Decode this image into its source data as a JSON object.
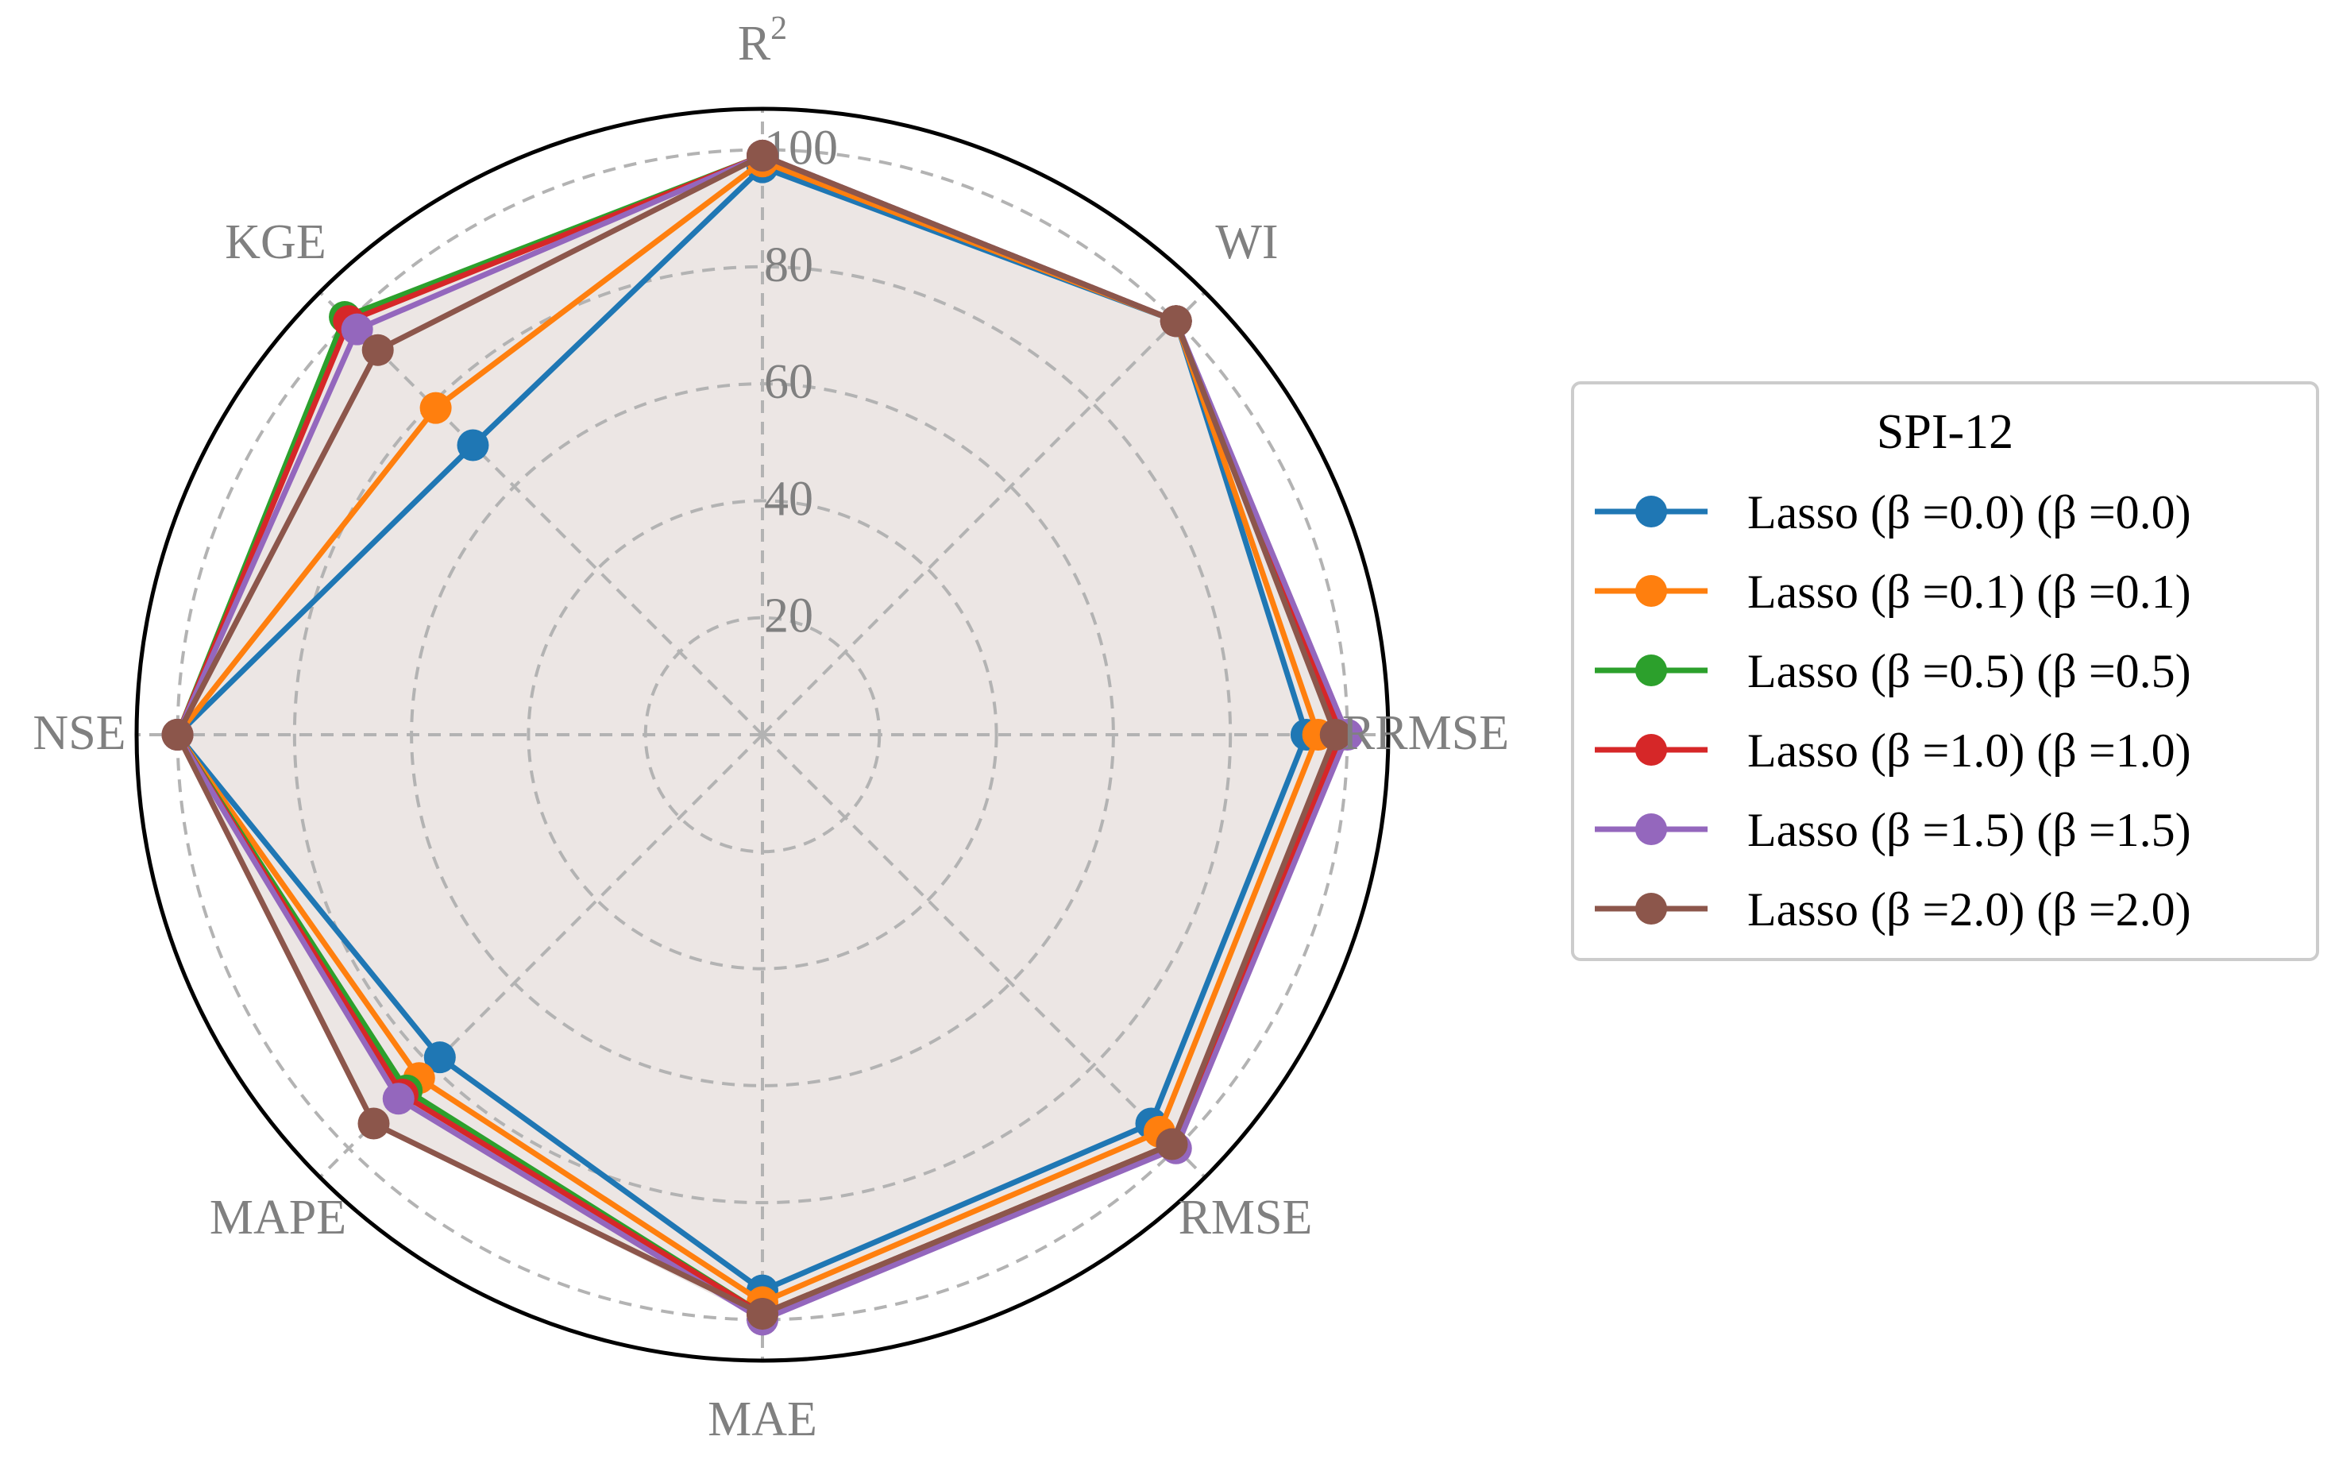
{
  "chart_data": {
    "type": "radar",
    "axes": [
      "R²",
      "WI",
      "RRMSE",
      "RMSE",
      "MAE",
      "MAPE",
      "NSE",
      "KGE"
    ],
    "axis_labels": [
      "R",
      "WI",
      "RRMSE",
      "RMSE",
      "MAE",
      "MAPE",
      "NSE",
      "KGE"
    ],
    "axis_label_superscripts": [
      "2",
      "",
      "",
      "",
      "",
      "",
      "",
      ""
    ],
    "r_ticks": [
      "20",
      "40",
      "60",
      "80",
      "100"
    ],
    "r_tick_values": [
      20,
      40,
      60,
      80,
      100
    ],
    "rlim": [
      0,
      107
    ],
    "grid": true,
    "legend": {
      "title": "SPI-12",
      "placement": "right"
    },
    "colors": {
      "fill": "#ece6e4",
      "grid": "#b3b3b3",
      "outer_circle": "#000000",
      "axis_label": "#808080"
    },
    "series": [
      {
        "name": "Lasso (β =0.0) (β =0.0)",
        "color": "#1f77b4",
        "values": [
          97,
          100,
          93,
          94,
          95,
          78,
          100,
          70
        ]
      },
      {
        "name": "Lasso (β =0.1) (β =0.1)",
        "color": "#ff7f0e",
        "values": [
          98,
          100,
          95,
          96,
          97,
          83,
          100,
          79
        ]
      },
      {
        "name": "Lasso (β =0.5) (β =0.5)",
        "color": "#2ca02c",
        "values": [
          99,
          100,
          99,
          99,
          99,
          86,
          100,
          101
        ]
      },
      {
        "name": "Lasso (β =1.0) (β =1.0)",
        "color": "#d62728",
        "values": [
          99,
          100,
          99,
          99,
          99,
          87,
          100,
          100
        ]
      },
      {
        "name": "Lasso (β =1.5) (β =1.5)",
        "color": "#9467bd",
        "values": [
          99,
          100,
          100,
          100,
          100,
          88,
          100,
          98
        ]
      },
      {
        "name": "Lasso (β =2.0) (β =2.0)",
        "color": "#8c564b",
        "values": [
          99,
          100,
          98,
          99,
          99,
          94,
          100,
          93
        ]
      }
    ]
  }
}
